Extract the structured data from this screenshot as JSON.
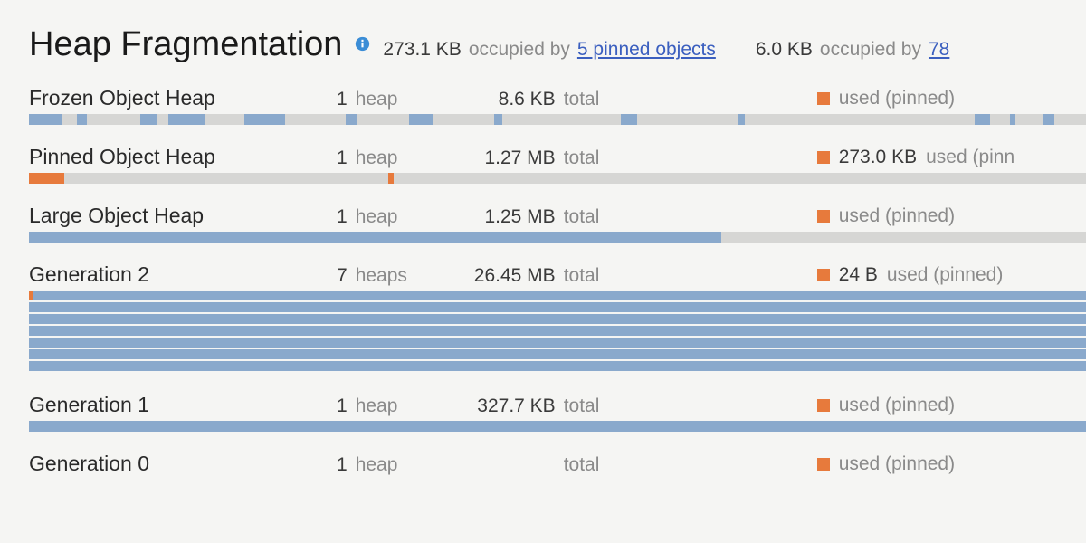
{
  "colors": {
    "blue": "#8aa9cc",
    "orange": "#e77a3c",
    "track": "#d6d6d4",
    "info": "#3b8dd6"
  },
  "title": "Heap Fragmentation",
  "summary1": {
    "value": "273.1 KB",
    "label": "occupied by",
    "link": "5 pinned objects"
  },
  "summary2": {
    "value": "6.0 KB",
    "label": "occupied by",
    "link": "78"
  },
  "sections": [
    {
      "name": "Frozen Object Heap",
      "count": "1",
      "count_label": "heap",
      "total": "8.6 KB",
      "total_label": "total",
      "legend_value": "",
      "legend_label": "used (pinned)",
      "bars": [
        {
          "h": 12,
          "track": "#d6d6d4",
          "segs": [
            {
              "l": 0,
              "w": 3.2,
              "c": "#8aa9cc"
            },
            {
              "l": 4.5,
              "w": 1.0,
              "c": "#8aa9cc"
            },
            {
              "l": 10.5,
              "w": 1.6,
              "c": "#8aa9cc"
            },
            {
              "l": 13.2,
              "w": 3.4,
              "c": "#8aa9cc"
            },
            {
              "l": 20.4,
              "w": 3.8,
              "c": "#8aa9cc"
            },
            {
              "l": 30.0,
              "w": 1.0,
              "c": "#8aa9cc"
            },
            {
              "l": 36.0,
              "w": 2.2,
              "c": "#8aa9cc"
            },
            {
              "l": 44.0,
              "w": 0.8,
              "c": "#8aa9cc"
            },
            {
              "l": 56.0,
              "w": 1.5,
              "c": "#8aa9cc"
            },
            {
              "l": 67.0,
              "w": 0.7,
              "c": "#8aa9cc"
            },
            {
              "l": 89.5,
              "w": 1.4,
              "c": "#8aa9cc"
            },
            {
              "l": 92.8,
              "w": 0.5,
              "c": "#8aa9cc"
            },
            {
              "l": 96.0,
              "w": 1.0,
              "c": "#8aa9cc"
            }
          ]
        }
      ]
    },
    {
      "name": "Pinned Object Heap",
      "count": "1",
      "count_label": "heap",
      "total": "1.27 MB",
      "total_label": "total",
      "legend_value": "273.0 KB",
      "legend_label": "used (pinn",
      "bars": [
        {
          "h": 12,
          "track": "#d6d6d4",
          "segs": [
            {
              "l": 0,
              "w": 3.3,
              "c": "#e77a3c"
            },
            {
              "l": 34.0,
              "w": 0.5,
              "c": "#e77a3c"
            }
          ]
        }
      ]
    },
    {
      "name": "Large Object Heap",
      "count": "1",
      "count_label": "heap",
      "total": "1.25 MB",
      "total_label": "total",
      "legend_value": "",
      "legend_label": "used (pinned)",
      "bars": [
        {
          "h": 12,
          "track": "#d6d6d4",
          "segs": [
            {
              "l": 0,
              "w": 65.5,
              "c": "#8aa9cc"
            }
          ]
        }
      ]
    },
    {
      "name": "Generation 2",
      "count": "7",
      "count_label": "heaps",
      "total": "26.45 MB",
      "total_label": "total",
      "legend_value": "24 B",
      "legend_label": "used (pinned)",
      "bars": [
        {
          "h": 11,
          "track": "#8aa9cc",
          "segs": [
            {
              "l": 0,
              "w": 0.35,
              "c": "#e77a3c"
            }
          ]
        },
        {
          "h": 11,
          "track": "#8aa9cc",
          "segs": []
        },
        {
          "h": 11,
          "track": "#8aa9cc",
          "segs": []
        },
        {
          "h": 11,
          "track": "#8aa9cc",
          "segs": []
        },
        {
          "h": 11,
          "track": "#8aa9cc",
          "segs": []
        },
        {
          "h": 11,
          "track": "#8aa9cc",
          "segs": []
        },
        {
          "h": 11,
          "track": "#8aa9cc",
          "segs": []
        }
      ]
    },
    {
      "name": "Generation 1",
      "count": "1",
      "count_label": "heap",
      "total": "327.7 KB",
      "total_label": "total",
      "legend_value": "",
      "legend_label": "used (pinned)",
      "bars": [
        {
          "h": 12,
          "track": "#8aa9cc",
          "segs": []
        }
      ]
    },
    {
      "name": "Generation 0",
      "count": "1",
      "count_label": "heap",
      "total": "",
      "total_label": "total",
      "legend_value": "",
      "legend_label": "used (pinned)",
      "bars": []
    }
  ]
}
